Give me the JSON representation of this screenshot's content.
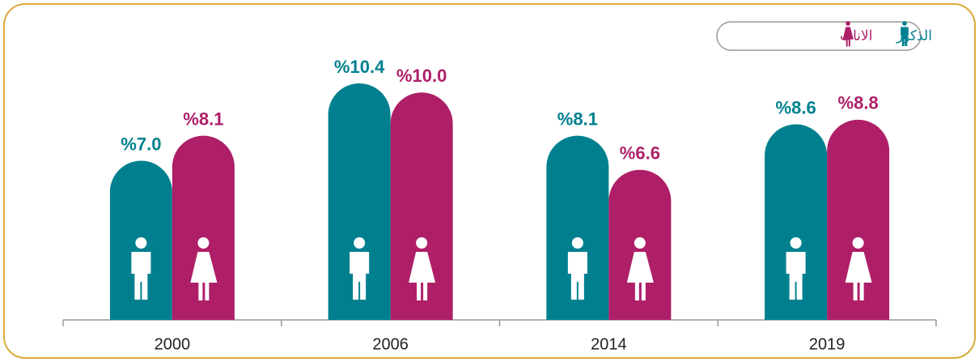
{
  "chart_data": {
    "type": "bar",
    "categories": [
      "2000",
      "2006",
      "2014",
      "2019"
    ],
    "series": [
      {
        "name": "الذكور",
        "color": "#00808f",
        "values": [
          7.0,
          10.4,
          8.1,
          8.6
        ],
        "value_labels": [
          "%7.0",
          "%10.4",
          "%8.1",
          "%8.6"
        ]
      },
      {
        "name": "الاناث",
        "color": "#ae1f68",
        "values": [
          8.1,
          10.0,
          6.6,
          8.8
        ],
        "value_labels": [
          "%8.1",
          "%10.0",
          "%6.6",
          "%8.8"
        ]
      }
    ]
  }
}
